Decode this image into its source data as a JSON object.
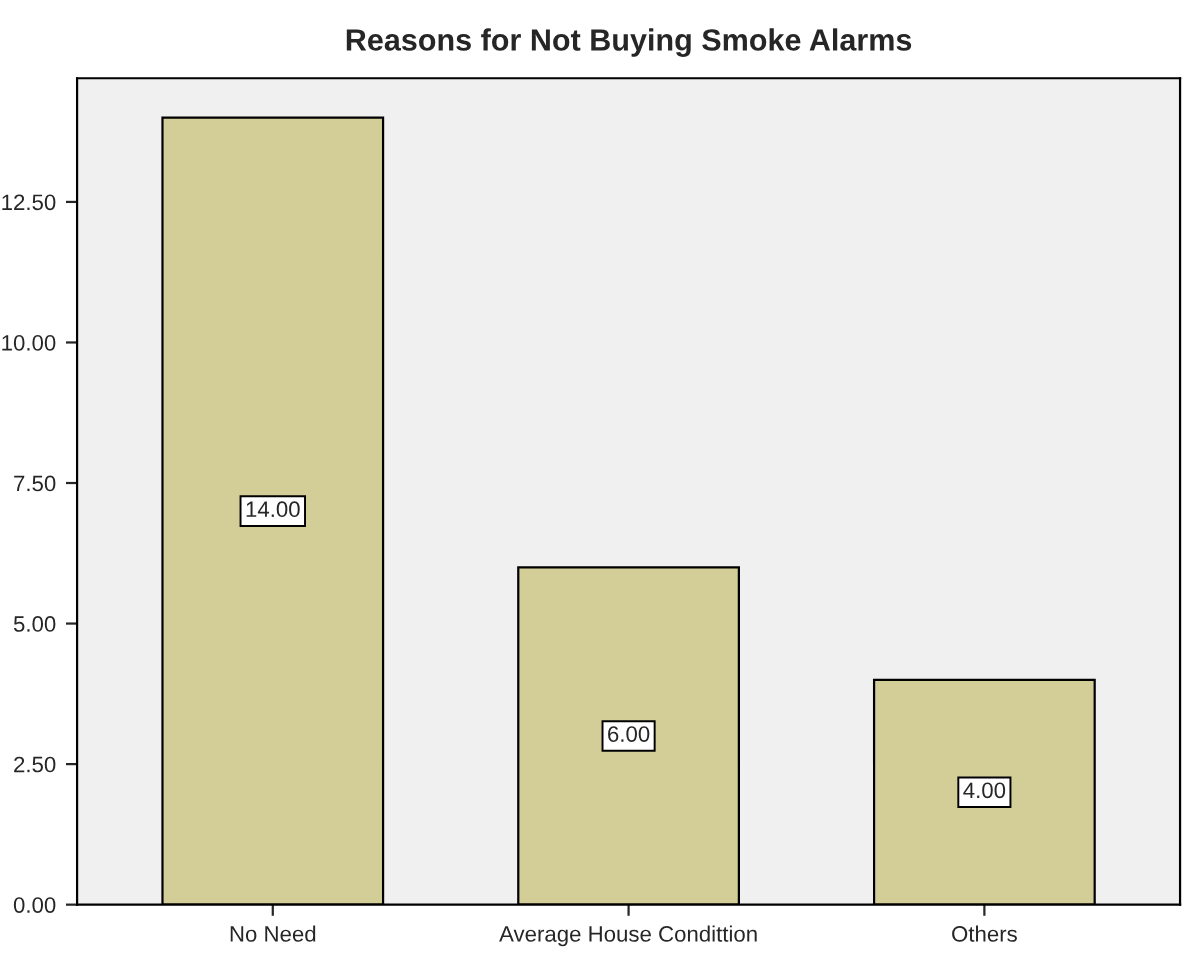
{
  "chart_data": {
    "type": "bar",
    "title": "Reasons for Not Buying Smoke Alarms",
    "categories": [
      "No Need",
      "Average House Condittion",
      "Others"
    ],
    "values": [
      14,
      6,
      4
    ],
    "value_labels": [
      "14.00",
      "6.00",
      "4.00"
    ],
    "color": "#d3ce97",
    "ylim": [
      0,
      14.7
    ],
    "yticks": [
      {
        "value": 0,
        "label": "0.00"
      },
      {
        "value": 2.5,
        "label": "2.50"
      },
      {
        "value": 5,
        "label": "5.00"
      },
      {
        "value": 7.5,
        "label": "7.50"
      },
      {
        "value": 10,
        "label": "10.00"
      },
      {
        "value": 12.5,
        "label": "12.50"
      }
    ],
    "grid": false
  }
}
